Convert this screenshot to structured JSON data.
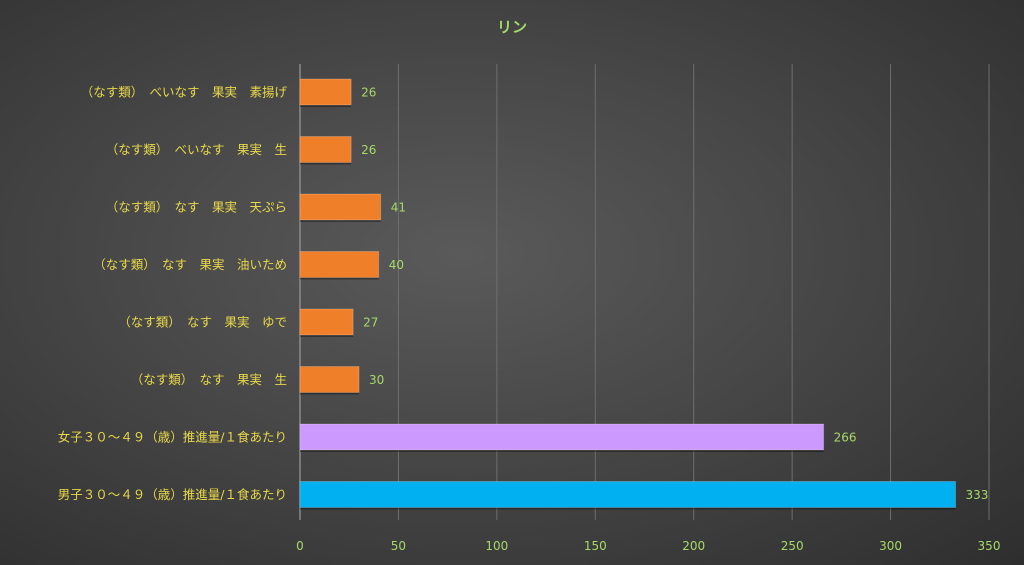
{
  "chart_data": {
    "type": "bar",
    "orientation": "horizontal",
    "title": "リン",
    "categories": [
      "（なす類）　べいなす　果実　素揚げ",
      "（なす類）　べいなす　果実　生",
      "（なす類）　なす　果実　天ぷら",
      "（なす類）　なす　果実　油いため",
      "（なす類）　なす　果実　ゆで",
      "（なす類）　なす　果実　生",
      "女子３０～４９（歳）推進量/１食あたり",
      "男子３０～４９（歳）推進量/１食あたり"
    ],
    "values": [
      26,
      26,
      41,
      40,
      27,
      30,
      266,
      333
    ],
    "value_labels": [
      "26",
      "26",
      "41",
      "40",
      "27",
      "30",
      "266",
      "333"
    ],
    "bar_colors": [
      "#f07f2a",
      "#f07f2a",
      "#f07f2a",
      "#f07f2a",
      "#f07f2a",
      "#f07f2a",
      "#cc99ff",
      "#00b0f0"
    ],
    "xlim": [
      0,
      350
    ],
    "xticks": [
      0,
      50,
      100,
      150,
      200,
      250,
      300,
      350
    ],
    "xtick_labels": [
      "0",
      "50",
      "100",
      "150",
      "200",
      "250",
      "300",
      "350"
    ],
    "grid": true,
    "legend": "none"
  }
}
